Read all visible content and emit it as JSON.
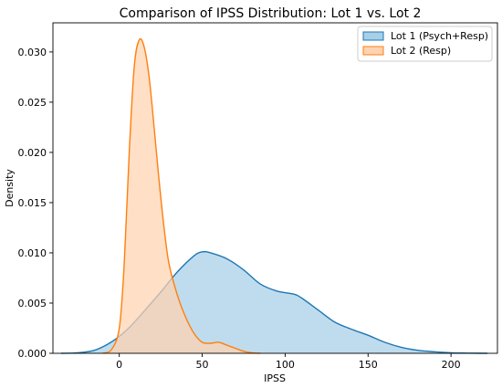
{
  "chart_data": {
    "type": "area",
    "title": "Comparison of IPSS Distribution: Lot 1 vs. Lot 2",
    "xlabel": "IPSS",
    "ylabel": "Density",
    "xlim": [
      -40,
      228
    ],
    "ylim": [
      0,
      0.0329
    ],
    "xticks": [
      0,
      50,
      100,
      150,
      200
    ],
    "yticks": [
      0.0,
      0.005,
      0.01,
      0.015,
      0.02,
      0.025,
      0.03
    ],
    "ytick_labels": [
      "0.000",
      "0.005",
      "0.010",
      "0.015",
      "0.020",
      "0.025",
      "0.030"
    ],
    "grid": false,
    "legend": "top-right",
    "series": [
      {
        "name": "Lot 1 (Psych+Resp)",
        "line_color": "#1f77b4",
        "fill_color": "#a6cfe8",
        "x": [
          -35,
          -25,
          -15,
          -5,
          5,
          15,
          25,
          35,
          45,
          50,
          55,
          65,
          75,
          85,
          95,
          105,
          110,
          120,
          130,
          140,
          150,
          160,
          170,
          180,
          190,
          200,
          210,
          222
        ],
        "y": [
          0.0,
          5e-05,
          0.0003,
          0.0011,
          0.0024,
          0.0042,
          0.0061,
          0.0081,
          0.0097,
          0.0101,
          0.01,
          0.0094,
          0.0083,
          0.0069,
          0.0062,
          0.0059,
          0.0055,
          0.0043,
          0.0031,
          0.0024,
          0.0018,
          0.0011,
          0.0006,
          0.0003,
          0.00015,
          5e-05,
          2e-05,
          0.0
        ]
      },
      {
        "name": "Lot 2 (Resp)",
        "line_color": "#ff7f0e",
        "fill_color": "#ffd3b0",
        "x": [
          -10,
          -5,
          0,
          3,
          6,
          9,
          12,
          15,
          18,
          21,
          24,
          27,
          30,
          35,
          40,
          45,
          50,
          55,
          60,
          65,
          70,
          75,
          80,
          85
        ],
        "y": [
          0.0,
          0.0003,
          0.0025,
          0.009,
          0.02,
          0.0285,
          0.0312,
          0.0305,
          0.0275,
          0.0225,
          0.0172,
          0.0125,
          0.0089,
          0.0058,
          0.0036,
          0.002,
          0.0011,
          0.001,
          0.0011,
          0.0008,
          0.0005,
          0.0002,
          5e-05,
          0.0
        ]
      }
    ]
  }
}
